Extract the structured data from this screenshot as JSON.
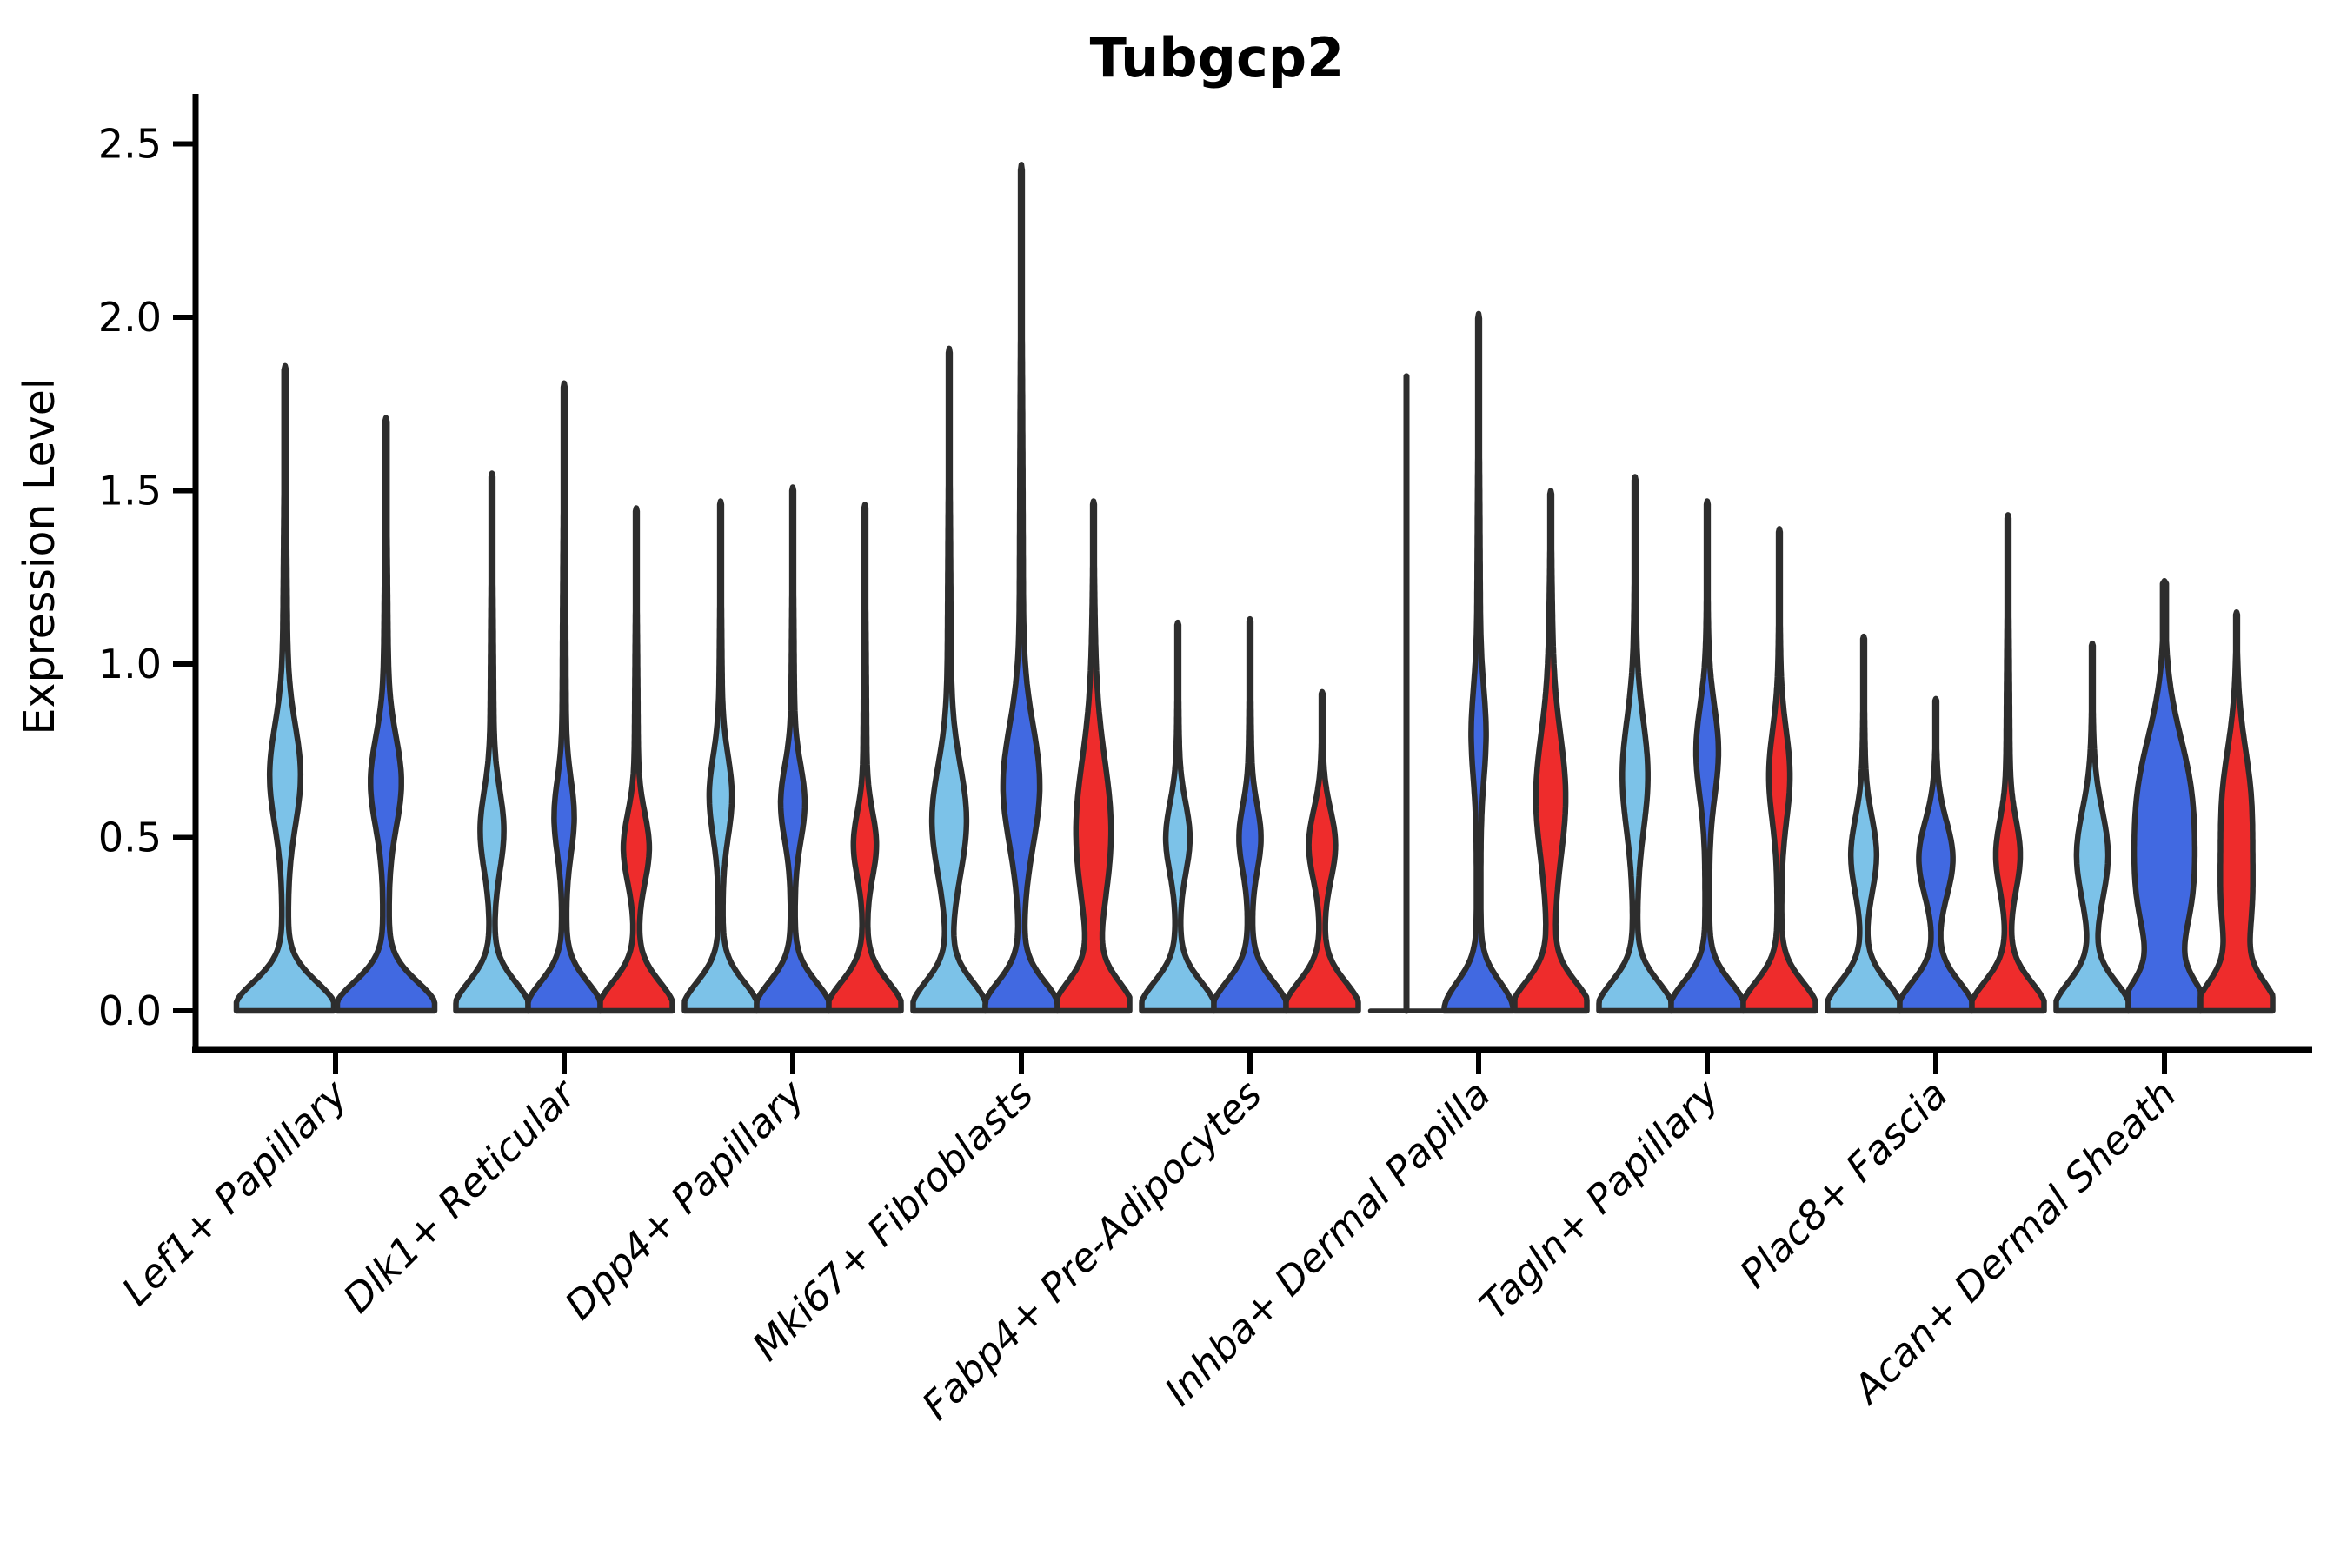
{
  "title": "Tubgcp2",
  "ylabel": "Expression Level",
  "chart_data": {
    "type": "violin",
    "title": "Tubgcp2",
    "xlabel": "",
    "ylabel": "Expression Level",
    "ylim": [
      -0.11,
      2.62
    ],
    "yticks": [
      0.0,
      0.5,
      1.0,
      1.5,
      2.0,
      2.5
    ],
    "ytick_labels": [
      "0.0",
      "0.5",
      "1.0",
      "1.5",
      "2.0",
      "2.5"
    ],
    "grid": false,
    "legend": "none",
    "categories": [
      "Lef1+ Papillary",
      "Dlk1+ Reticular",
      "Dpp4+ Papillary",
      "Mki67+ Fibroblasts",
      "Fabp4+ Pre-Adipocytes",
      "Inhba+ Dermal Papilla",
      "Tagln+ Papillary",
      "Plac8+ Fascia",
      "Acan+ Dermal Sheath"
    ],
    "palette": {
      "lightblue": "#7CC2E8",
      "darkblue": "#4169E1",
      "red": "#EE2C2C",
      "outline": "#2D2D2D"
    },
    "groups": [
      {
        "category": "Lef1+ Papillary",
        "violins": [
          {
            "color": "lightblue",
            "max": 1.86,
            "bulges": [
              {
                "c": 0.68,
                "s": 0.2,
                "a": 0.26
              }
            ]
          },
          {
            "color": "darkblue",
            "max": 1.71,
            "bulges": [
              {
                "c": 0.66,
                "s": 0.18,
                "a": 0.26
              }
            ]
          }
        ]
      },
      {
        "category": "Dlk1+ Reticular",
        "violins": [
          {
            "color": "lightblue",
            "max": 1.55,
            "bulges": [
              {
                "c": 0.52,
                "s": 0.16,
                "a": 0.27
              }
            ]
          },
          {
            "color": "darkblue",
            "max": 1.81,
            "bulges": [
              {
                "c": 0.56,
                "s": 0.15,
                "a": 0.22
              }
            ]
          },
          {
            "color": "red",
            "max": 1.45,
            "bulges": [
              {
                "c": 0.47,
                "s": 0.14,
                "a": 0.3
              }
            ]
          }
        ]
      },
      {
        "category": "Dpp4+ Papillary",
        "violins": [
          {
            "color": "lightblue",
            "max": 1.47,
            "bulges": [
              {
                "c": 0.62,
                "s": 0.16,
                "a": 0.26
              }
            ]
          },
          {
            "color": "darkblue",
            "max": 1.51,
            "bulges": [
              {
                "c": 0.6,
                "s": 0.15,
                "a": 0.28
              }
            ]
          },
          {
            "color": "red",
            "max": 1.46,
            "bulges": [
              {
                "c": 0.48,
                "s": 0.13,
                "a": 0.26
              }
            ]
          }
        ]
      },
      {
        "category": "Mki67+ Fibroblasts",
        "violins": [
          {
            "color": "lightblue",
            "max": 1.91,
            "bulges": [
              {
                "c": 0.55,
                "s": 0.22,
                "a": 0.42
              }
            ]
          },
          {
            "color": "darkblue",
            "max": 2.44,
            "bulges": [
              {
                "c": 0.65,
                "s": 0.24,
                "a": 0.45
              }
            ]
          },
          {
            "color": "red",
            "max": 1.47,
            "stem": 0.09,
            "bulges": [
              {
                "c": 0.52,
                "s": 0.28,
                "a": 0.4
              }
            ]
          }
        ]
      },
      {
        "category": "Fabp4+ Pre-Adipocytes",
        "violins": [
          {
            "color": "lightblue",
            "max": 1.12,
            "bulges": [
              {
                "c": 0.5,
                "s": 0.14,
                "a": 0.28
              }
            ]
          },
          {
            "color": "darkblue",
            "max": 1.13,
            "bulges": [
              {
                "c": 0.5,
                "s": 0.13,
                "a": 0.25
              }
            ]
          },
          {
            "color": "red",
            "max": 0.92,
            "bulges": [
              {
                "c": 0.48,
                "s": 0.14,
                "a": 0.32
              }
            ]
          }
        ]
      },
      {
        "category": "Inhba+ Dermal Papilla",
        "violins": [
          {
            "color": "lightblue",
            "max": 1.83,
            "degenerate": true
          },
          {
            "color": "darkblue",
            "max": 2.01,
            "base": 0.9,
            "bulges": [
              {
                "c": 0.8,
                "s": 0.18,
                "a": 0.15
              }
            ]
          },
          {
            "color": "red",
            "max": 1.5,
            "stem": 0.1,
            "bulges": [
              {
                "c": 0.62,
                "s": 0.24,
                "a": 0.32
              }
            ]
          }
        ]
      },
      {
        "category": "Tagln+ Papillary",
        "violins": [
          {
            "color": "lightblue",
            "max": 1.54,
            "bulges": [
              {
                "c": 0.68,
                "s": 0.22,
                "a": 0.3
              }
            ]
          },
          {
            "color": "darkblue",
            "max": 1.47,
            "bulges": [
              {
                "c": 0.75,
                "s": 0.18,
                "a": 0.26
              }
            ]
          },
          {
            "color": "red",
            "max": 1.39,
            "bulges": [
              {
                "c": 0.68,
                "s": 0.18,
                "a": 0.24
              }
            ]
          }
        ]
      },
      {
        "category": "Plac8+ Fascia",
        "violins": [
          {
            "color": "lightblue",
            "max": 1.08,
            "bulges": [
              {
                "c": 0.45,
                "s": 0.15,
                "a": 0.3
              }
            ]
          },
          {
            "color": "darkblue",
            "max": 0.9,
            "bulges": [
              {
                "c": 0.44,
                "s": 0.15,
                "a": 0.42
              }
            ]
          },
          {
            "color": "red",
            "max": 1.43,
            "bulges": [
              {
                "c": 0.45,
                "s": 0.14,
                "a": 0.28
              }
            ]
          }
        ]
      },
      {
        "category": "Acan+ Dermal Sheath",
        "violins": [
          {
            "color": "lightblue",
            "max": 1.06,
            "bulges": [
              {
                "c": 0.45,
                "s": 0.18,
                "a": 0.38
              }
            ]
          },
          {
            "color": "darkblue",
            "max": 1.24,
            "stem": 0.1,
            "tipw": 0.05,
            "tiplen": 0.06,
            "bulges": [
              {
                "c": 0.32,
                "s": 0.22,
                "a": 0.52
              },
              {
                "c": 0.62,
                "s": 0.25,
                "a": 0.6
              }
            ]
          },
          {
            "color": "red",
            "max": 1.15,
            "stem": 0.08,
            "bulges": [
              {
                "c": 0.3,
                "s": 0.2,
                "a": 0.3
              },
              {
                "c": 0.6,
                "s": 0.22,
                "a": 0.32
              }
            ]
          }
        ]
      }
    ]
  }
}
